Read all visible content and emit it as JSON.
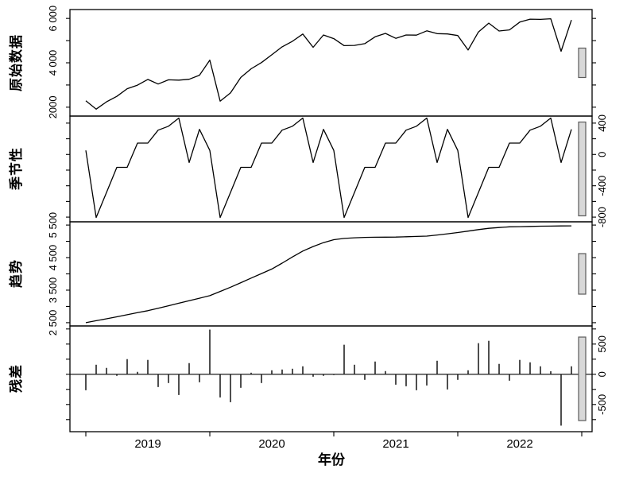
{
  "chart_data": {
    "type": "line",
    "subtype": "time-series-decomposition",
    "title": "",
    "x_label": "年份",
    "x_start": "2018-07",
    "x_end": "2022-06",
    "frequency": "monthly",
    "n_points": 48,
    "x_year_ticks": [
      "2019",
      "2020",
      "2021",
      "2022"
    ],
    "grid": false,
    "legend": "none",
    "line_color": "#000000",
    "scale_bar_fill": "#d8d8d8",
    "scale_bar_stroke": "#5a5a5a",
    "panels": [
      {
        "id": "observed",
        "label": "原始数据",
        "style": "line",
        "label_side": "left",
        "ylim": [
          1600,
          6400
        ],
        "ticks": [
          2000,
          3000,
          4000,
          5000,
          6000
        ],
        "tick_labels": [
          {
            "value": 2000,
            "text": "2000"
          },
          {
            "value": 4000,
            "text": "4 000"
          },
          {
            "value": 6000,
            "text": "6 000"
          }
        ],
        "values": [
          2288,
          1913,
          2241,
          2489,
          2831,
          2992,
          3253,
          3044,
          3235,
          3220,
          3257,
          3440,
          4122,
          2272,
          2643,
          3341,
          3731,
          4010,
          4361,
          4719,
          4972,
          5297,
          4697,
          5254,
          5089,
          4774,
          4783,
          4863,
          5171,
          5326,
          5103,
          5252,
          5246,
          5440,
          5316,
          5299,
          5230,
          4576,
          5390,
          5789,
          5432,
          5484,
          5833,
          5966,
          5957,
          5983,
          4519,
          5927
        ]
      },
      {
        "id": "seasonal",
        "label": "季节性",
        "style": "line",
        "label_side": "right",
        "ylim": [
          -860,
          490
        ],
        "ticks": [
          -800,
          -600,
          -400,
          -200,
          0,
          200,
          400
        ],
        "tick_labels": [
          {
            "value": 400,
            "text": "400"
          },
          {
            "value": 0,
            "text": "0"
          },
          {
            "value": -400,
            "text": "-400"
          },
          {
            "value": -800,
            "text": "-800"
          }
        ],
        "values": [
          52,
          -805,
          -485,
          -165,
          -165,
          145,
          145,
          310,
          360,
          465,
          -103,
          320,
          52,
          -805,
          -485,
          -165,
          -165,
          145,
          145,
          310,
          360,
          465,
          -103,
          320,
          52,
          -805,
          -485,
          -165,
          -165,
          145,
          145,
          310,
          360,
          465,
          -103,
          320,
          52,
          -805,
          -485,
          -165,
          -165,
          145,
          145,
          310,
          360,
          465,
          -103,
          320
        ]
      },
      {
        "id": "trend",
        "label": "趋势",
        "style": "line",
        "label_side": "left",
        "ylim": [
          2400,
          5600
        ],
        "ticks": [
          2500,
          3000,
          3500,
          4000,
          4500,
          5000,
          5500
        ],
        "tick_labels": [
          {
            "value": 2500,
            "text": "2 500"
          },
          {
            "value": 3500,
            "text": "3 500"
          },
          {
            "value": 4500,
            "text": "4 500"
          },
          {
            "value": 5500,
            "text": "5 500"
          }
        ],
        "values": [
          2500,
          2560,
          2620,
          2680,
          2745,
          2807,
          2870,
          2945,
          3020,
          3098,
          3175,
          3252,
          3330,
          3460,
          3590,
          3730,
          3870,
          4010,
          4150,
          4330,
          4520,
          4700,
          4840,
          4960,
          5050,
          5090,
          5110,
          5120,
          5125,
          5128,
          5130,
          5140,
          5150,
          5160,
          5195,
          5230,
          5270,
          5315,
          5360,
          5400,
          5425,
          5445,
          5450,
          5458,
          5465,
          5468,
          5472,
          5475
        ]
      },
      {
        "id": "residual",
        "label": "残差",
        "style": "bars",
        "label_side": "right",
        "ylim": [
          -950,
          800
        ],
        "ticks": [
          -750,
          -500,
          -250,
          0,
          250,
          500,
          750
        ],
        "tick_labels": [
          {
            "value": 500,
            "text": "500"
          },
          {
            "value": 0,
            "text": "0"
          },
          {
            "value": -500,
            "text": "-500"
          }
        ],
        "values": [
          -264,
          158,
          106,
          -26,
          251,
          40,
          238,
          -211,
          -145,
          -343,
          185,
          -132,
          740,
          -383,
          -462,
          -224,
          26,
          -145,
          66,
          79,
          92,
          132,
          -40,
          -26,
          -13,
          489,
          158,
          -92,
          211,
          53,
          -172,
          -198,
          -264,
          -185,
          224,
          -251,
          -92,
          66,
          515,
          554,
          172,
          -106,
          238,
          198,
          132,
          50,
          -850,
          132
        ]
      }
    ]
  }
}
